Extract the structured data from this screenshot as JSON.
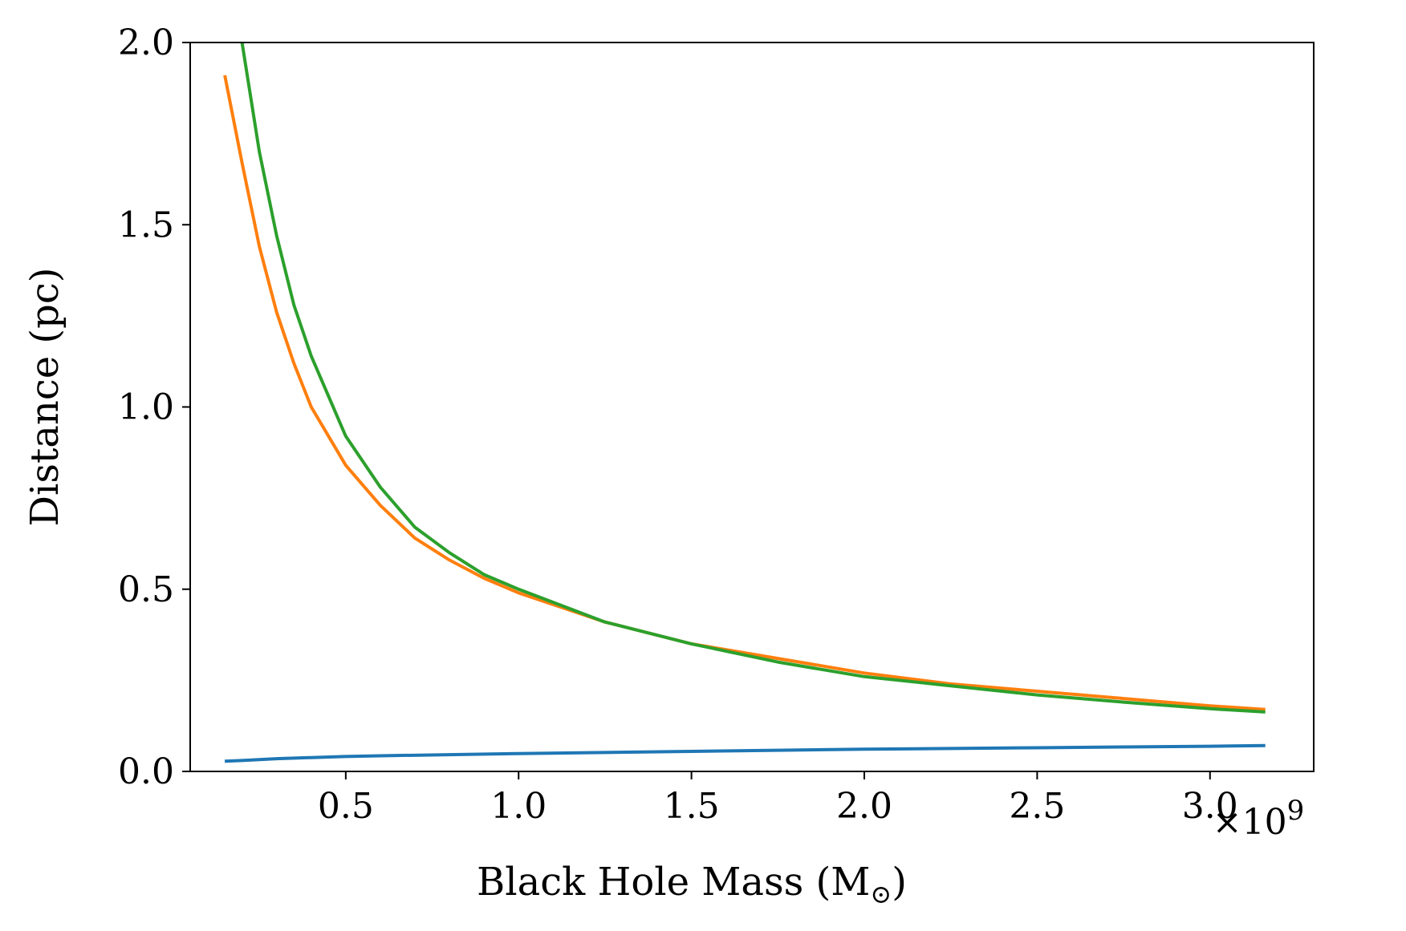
{
  "chart_data": {
    "type": "line",
    "title": "",
    "xlabel": "Black Hole Mass (M",
    "xlabel_sub": "⊙",
    "xlabel_close": ")",
    "ylabel": "Distance (pc)",
    "x_scale_label": "×10",
    "x_scale_exp": "9",
    "x_unit": 1000000000,
    "xlim": [
      0.05,
      3.3
    ],
    "ylim": [
      0.0,
      2.0
    ],
    "x_ticks": [
      0.5,
      1.0,
      1.5,
      2.0,
      2.5,
      3.0
    ],
    "x_tick_labels": [
      "0.5",
      "1.0",
      "1.5",
      "2.0",
      "2.5",
      "3.0"
    ],
    "y_ticks": [
      0.0,
      0.5,
      1.0,
      1.5,
      2.0
    ],
    "y_tick_labels": [
      "0.0",
      "0.5",
      "1.0",
      "1.5",
      "2.0"
    ],
    "grid": false,
    "legend": "none",
    "series": [
      {
        "name": "series-1",
        "color": "#1f77b4",
        "x": [
          0.15,
          0.2,
          0.3,
          0.4,
          0.5,
          0.6,
          0.8,
          1.0,
          1.25,
          1.5,
          1.75,
          2.0,
          2.25,
          2.5,
          2.75,
          3.0,
          3.16
        ],
        "y": [
          0.028,
          0.03,
          0.035,
          0.038,
          0.041,
          0.043,
          0.046,
          0.049,
          0.052,
          0.055,
          0.058,
          0.061,
          0.063,
          0.065,
          0.067,
          0.069,
          0.071
        ]
      },
      {
        "name": "series-2",
        "color": "#ff7f0e",
        "x": [
          0.15,
          0.2,
          0.25,
          0.3,
          0.35,
          0.4,
          0.5,
          0.6,
          0.7,
          0.8,
          0.9,
          1.0,
          1.25,
          1.5,
          1.75,
          2.0,
          2.25,
          2.5,
          2.75,
          3.0,
          3.16
        ],
        "y": [
          1.91,
          1.67,
          1.44,
          1.26,
          1.12,
          1.0,
          0.84,
          0.73,
          0.64,
          0.58,
          0.53,
          0.49,
          0.41,
          0.35,
          0.31,
          0.27,
          0.24,
          0.22,
          0.2,
          0.18,
          0.17
        ]
      },
      {
        "name": "series-3",
        "color": "#2ca02c",
        "x": [
          0.2,
          0.25,
          0.3,
          0.35,
          0.4,
          0.5,
          0.6,
          0.7,
          0.8,
          0.9,
          1.0,
          1.25,
          1.5,
          1.75,
          2.0,
          2.25,
          2.5,
          2.75,
          3.0,
          3.16
        ],
        "y": [
          2.0,
          1.7,
          1.47,
          1.28,
          1.14,
          0.92,
          0.78,
          0.67,
          0.6,
          0.54,
          0.5,
          0.41,
          0.35,
          0.3,
          0.26,
          0.235,
          0.21,
          0.19,
          0.172,
          0.163
        ]
      }
    ]
  }
}
